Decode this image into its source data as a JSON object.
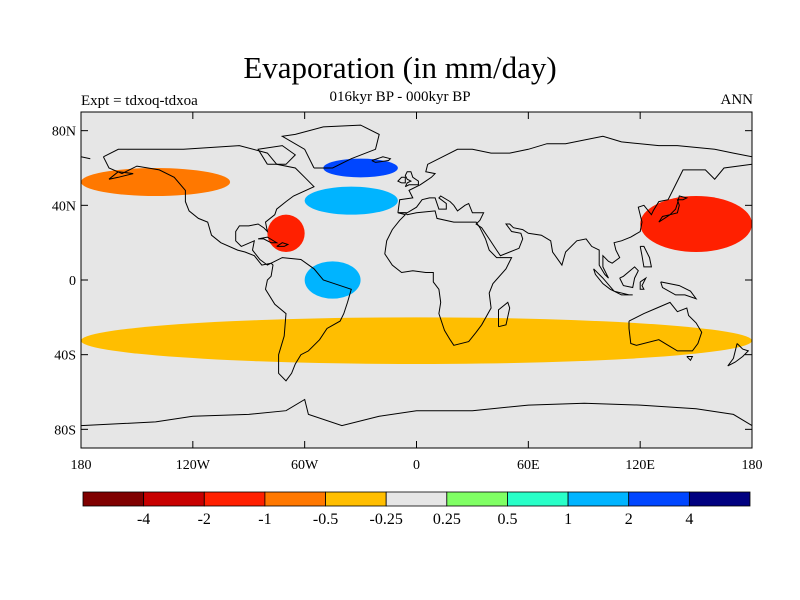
{
  "title": "Evaporation (in mm/day)",
  "subtitle": "016kyr BP - 000kyr BP",
  "left_label": "Expt = tdxoq-tdxoa",
  "right_label": "ANN",
  "lat_ticks": [
    "80N",
    "40N",
    "0",
    "40S",
    "80S"
  ],
  "lon_ticks": [
    "180",
    "120W",
    "60W",
    "0",
    "60E",
    "120E",
    "180"
  ],
  "colorbar": {
    "colors": [
      "#800000",
      "#c80000",
      "#ff2000",
      "#ff7800",
      "#ffbe00",
      "#e6e6e6",
      "#80ff64",
      "#28ffc8",
      "#00b4ff",
      "#0046ff",
      "#000080"
    ],
    "labels": [
      "-4",
      "-2",
      "-1",
      "-0.5",
      "-0.25",
      "0.25",
      "0.5",
      "1",
      "2",
      "4"
    ]
  },
  "chart_data": {
    "type": "heatmap",
    "title": "Evaporation (in mm/day)",
    "subtitle": "016kyr BP - 000kyr BP",
    "experiment": "Expt = tdxoq-tdxoa",
    "season": "ANN",
    "xlabel": "",
    "ylabel": "",
    "x_range": [
      -180,
      180
    ],
    "y_range": [
      -90,
      90
    ],
    "x_ticks": [
      -180,
      -120,
      -60,
      0,
      60,
      120,
      180
    ],
    "y_ticks": [
      80,
      40,
      0,
      -40,
      -80
    ],
    "levels": [
      -4,
      -2,
      -1,
      -0.5,
      -0.25,
      0.25,
      0.5,
      1,
      2,
      4
    ],
    "regions": [
      {
        "lon": [
          -180,
          -100
        ],
        "lat": [
          45,
          60
        ],
        "value": -1
      },
      {
        "lon": [
          -60,
          -10
        ],
        "lat": [
          35,
          50
        ],
        "value": 1
      },
      {
        "lon": [
          -50,
          -10
        ],
        "lat": [
          55,
          65
        ],
        "value": 2
      },
      {
        "lon": [
          120,
          180
        ],
        "lat": [
          15,
          45
        ],
        "value": -2
      },
      {
        "lon": [
          -80,
          -60
        ],
        "lat": [
          15,
          35
        ],
        "value": -2
      },
      {
        "lon": [
          -60,
          -30
        ],
        "lat": [
          -10,
          10
        ],
        "value": 1
      },
      {
        "lon": [
          -180,
          180
        ],
        "lat": [
          -45,
          -20
        ],
        "value": -0.5
      }
    ]
  }
}
